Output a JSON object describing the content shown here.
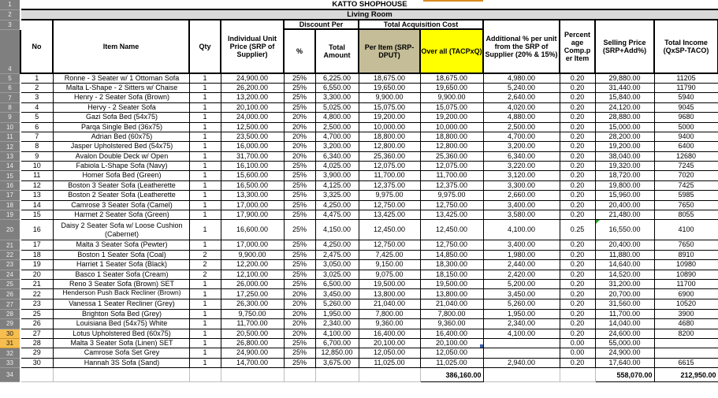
{
  "sheet": {
    "title": "KATTO SHOPHOUSE",
    "subtitle": "Living Room",
    "gutter": {
      "r1": "1",
      "r2": "2",
      "r3": "3",
      "r4": "4",
      "r34": "34"
    },
    "headers": {
      "no": "No",
      "item_name": "Item Name",
      "qty": "Qty",
      "unit_price": "Individual Unit Price (SRP of Supplier)",
      "discount_group": "Discount Per",
      "discount_pct": "%",
      "discount_total": "Total Amount",
      "tac_group": "Total Acquisition Cost",
      "tac_per_item": "Per Item  (SRP-DPUT)",
      "tac_overall": "Over all (TACPxQ)",
      "additional": "Additional % per unit from the SRP of Supplier (20% & 15%)",
      "percent_comp": "Percent age Comp.p er Item",
      "selling": "Selling Price (SRP+Add%)",
      "income": "Total Income (QxSP-TACO)"
    },
    "rows": [
      {
        "r": "5",
        "no": "1",
        "name": "Ronne - 3 Seater w/ 1 Ottoman Sofa",
        "qty": "1",
        "unit": "24,900.00",
        "dpct": "25%",
        "damt": "6,225.00",
        "per": "18,675.00",
        "oa": "18,675.00",
        "add": "4,980.00",
        "comp": "0.20",
        "sp": "29,880.00",
        "ti": "11205"
      },
      {
        "r": "6",
        "no": "2",
        "name": "Malta L-Shape - 2 Sitters w/ Chaise",
        "qty": "1",
        "unit": "26,200.00",
        "dpct": "25%",
        "damt": "6,550.00",
        "per": "19,650.00",
        "oa": "19,650.00",
        "add": "5,240.00",
        "comp": "0.20",
        "sp": "31,440.00",
        "ti": "11790"
      },
      {
        "r": "7",
        "no": "3",
        "name": "Henry - 2 Seater Sofa (Brown)",
        "qty": "1",
        "unit": "13,200.00",
        "dpct": "25%",
        "damt": "3,300.00",
        "per": "9,900.00",
        "oa": "9,900.00",
        "add": "2,640.00",
        "comp": "0.20",
        "sp": "15,840.00",
        "ti": "5940"
      },
      {
        "r": "8",
        "no": "4",
        "name": "Hervy - 2 Seater Sofa",
        "qty": "1",
        "unit": "20,100.00",
        "dpct": "25%",
        "damt": "5,025.00",
        "per": "15,075.00",
        "oa": "15,075.00",
        "add": "4,020.00",
        "comp": "0.20",
        "sp": "24,120.00",
        "ti": "9045"
      },
      {
        "r": "9",
        "no": "5",
        "name": "Gazi Sofa Bed (54x75)",
        "qty": "1",
        "unit": "24,000.00",
        "dpct": "20%",
        "damt": "4,800.00",
        "per": "19,200.00",
        "oa": "19,200.00",
        "add": "4,880.00",
        "comp": "0.20",
        "sp": "28,880.00",
        "ti": "9680"
      },
      {
        "r": "10",
        "no": "6",
        "name": "Parqa Single Bed (36x75)",
        "qty": "1",
        "unit": "12,500.00",
        "dpct": "20%",
        "damt": "2,500.00",
        "per": "10,000.00",
        "oa": "10,000.00",
        "add": "2,500.00",
        "comp": "0.20",
        "sp": "15,000.00",
        "ti": "5000"
      },
      {
        "r": "11",
        "no": "7",
        "name": "Adrian Bed (60x75)",
        "qty": "1",
        "unit": "23,500.00",
        "dpct": "20%",
        "damt": "4,700.00",
        "per": "18,800.00",
        "oa": "18,800.00",
        "add": "4,700.00",
        "comp": "0.20",
        "sp": "28,200.00",
        "ti": "9400"
      },
      {
        "r": "12",
        "no": "8",
        "name": "Jasper Upholstered Bed (54x75)",
        "qty": "1",
        "unit": "16,000.00",
        "dpct": "20%",
        "damt": "3,200.00",
        "per": "12,800.00",
        "oa": "12,800.00",
        "add": "3,200.00",
        "comp": "0.20",
        "sp": "19,200.00",
        "ti": "6400"
      },
      {
        "r": "13",
        "no": "9",
        "name": "Avalon Double Deck w/ Open",
        "qty": "1",
        "unit": "31,700.00",
        "dpct": "20%",
        "damt": "6,340.00",
        "per": "25,360.00",
        "oa": "25,360.00",
        "add": "6,340.00",
        "comp": "0.20",
        "sp": "38,040.00",
        "ti": "12680"
      },
      {
        "r": "14",
        "no": "10",
        "name": "Fabiola L-Shape Sofa (Navy)",
        "qty": "1",
        "unit": "16,100.00",
        "dpct": "25%",
        "damt": "4,025.00",
        "per": "12,075.00",
        "oa": "12,075.00",
        "add": "3,220.00",
        "comp": "0.20",
        "sp": "19,320.00",
        "ti": "7245"
      },
      {
        "r": "15",
        "no": "11",
        "name": "Homer Sofa Bed (Green)",
        "qty": "1",
        "unit": "15,600.00",
        "dpct": "25%",
        "damt": "3,900.00",
        "per": "11,700.00",
        "oa": "11,700.00",
        "add": "3,120.00",
        "comp": "0.20",
        "sp": "18,720.00",
        "ti": "7020"
      },
      {
        "r": "16",
        "no": "12",
        "name": "Boston 3 Seater Sofa (Leatherette",
        "qty": "1",
        "unit": "16,500.00",
        "dpct": "25%",
        "damt": "4,125.00",
        "per": "12,375.00",
        "oa": "12,375.00",
        "add": "3,300.00",
        "comp": "0.20",
        "sp": "19,800.00",
        "ti": "7425"
      },
      {
        "r": "17",
        "no": "13",
        "name": "Boston 2 Seater Sofa (Leatherette",
        "qty": "1",
        "unit": "13,300.00",
        "dpct": "25%",
        "damt": "3,325.00",
        "per": "9,975.00",
        "oa": "9,975.00",
        "add": "2,660.00",
        "comp": "0.20",
        "sp": "15,960.00",
        "ti": "5985"
      },
      {
        "r": "18",
        "no": "14",
        "name": "Camrose 3 Seater Sofa (Camel)",
        "qty": "1",
        "unit": "17,000.00",
        "dpct": "25%",
        "damt": "4,250.00",
        "per": "12,750.00",
        "oa": "12,750.00",
        "add": "3,400.00",
        "comp": "0.20",
        "sp": "20,400.00",
        "ti": "7650"
      },
      {
        "r": "19",
        "no": "15",
        "name": "Harmet 2 Seater Sofa (Green)",
        "qty": "1",
        "unit": "17,900.00",
        "dpct": "25%",
        "damt": "4,475.00",
        "per": "13,425.00",
        "oa": "13,425.00",
        "add": "3,580.00",
        "comp": "0.20",
        "sp": "21,480.00",
        "ti": "8055"
      },
      {
        "r": "20",
        "no": "16",
        "name": "Daisy 2 Seater Sofa w/ Loose Cushion (Cabernet)",
        "qty": "1",
        "unit": "16,600.00",
        "dpct": "25%",
        "damt": "4,150.00",
        "per": "12,450.00",
        "oa": "12,450.00",
        "add": "4,100.00",
        "comp": "0.25",
        "sp": "16,550.00",
        "ti": "4100",
        "tall": true,
        "tri": true
      },
      {
        "r": "21",
        "no": "17",
        "name": "Malta 3 Seater Sofa (Pewter)",
        "qty": "1",
        "unit": "17,000.00",
        "dpct": "25%",
        "damt": "4,250.00",
        "per": "12,750.00",
        "oa": "12,750.00",
        "add": "3,400.00",
        "comp": "0.20",
        "sp": "20,400.00",
        "ti": "7650"
      },
      {
        "r": "22",
        "no": "18",
        "name": "Boston 1 Seater Sofa (Coal)",
        "qty": "2",
        "unit": "9,900.00",
        "dpct": "25%",
        "damt": "2,475.00",
        "per": "7,425.00",
        "oa": "14,850.00",
        "add": "1,980.00",
        "comp": "0.20",
        "sp": "11,880.00",
        "ti": "8910"
      },
      {
        "r": "23",
        "no": "19",
        "name": "Harriet 1 Seater Sofa (Black)",
        "qty": "2",
        "unit": "12,200.00",
        "dpct": "25%",
        "damt": "3,050.00",
        "per": "9,150.00",
        "oa": "18,300.00",
        "add": "2,440.00",
        "comp": "0.20",
        "sp": "14,640.00",
        "ti": "10980"
      },
      {
        "r": "24",
        "no": "20",
        "name": "Basco 1 Seater Sofa (Cream)",
        "qty": "2",
        "unit": "12,100.00",
        "dpct": "25%",
        "damt": "3,025.00",
        "per": "9,075.00",
        "oa": "18,150.00",
        "add": "2,420.00",
        "comp": "0.20",
        "sp": "14,520.00",
        "ti": "10890"
      },
      {
        "r": "25",
        "no": "21",
        "name": "Reno 3 Seater Sofa (Brown) SET",
        "qty": "1",
        "unit": "26,000.00",
        "dpct": "25%",
        "damt": "6,500.00",
        "per": "19,500.00",
        "oa": "19,500.00",
        "add": "5,200.00",
        "comp": "0.20",
        "sp": "31,200.00",
        "ti": "11700"
      },
      {
        "r": "26",
        "no": "22",
        "name": "Henderson Push Back Recliner (Brown)",
        "qty": "1",
        "unit": "17,250.00",
        "dpct": "20%",
        "damt": "3,450.00",
        "per": "13,800.00",
        "oa": "13,800.00",
        "add": "3,450.00",
        "comp": "0.20",
        "sp": "20,700.00",
        "ti": "6900",
        "clip": true
      },
      {
        "r": "27",
        "no": "23",
        "name": "Vanessa 1 Seater Recliner (Grey)",
        "qty": "1",
        "unit": "26,300.00",
        "dpct": "20%",
        "damt": "5,260.00",
        "per": "21,040.00",
        "oa": "21,040.00",
        "add": "5,260.00",
        "comp": "0.20",
        "sp": "31,560.00",
        "ti": "10520"
      },
      {
        "r": "28",
        "no": "25",
        "name": "Brighton Sofa Bed (Grey)",
        "qty": "1",
        "unit": "9,750.00",
        "dpct": "20%",
        "damt": "1,950.00",
        "per": "7,800.00",
        "oa": "7,800.00",
        "add": "1,950.00",
        "comp": "0.20",
        "sp": "11,700.00",
        "ti": "3900"
      },
      {
        "r": "29",
        "no": "26",
        "name": "Louisiana Bed (54x75) White",
        "qty": "1",
        "unit": "11,700.00",
        "dpct": "20%",
        "damt": "2,340.00",
        "per": "9,360.00",
        "oa": "9,360.00",
        "add": "2,340.00",
        "comp": "0.20",
        "sp": "14,040.00",
        "ti": "4680"
      },
      {
        "r": "30",
        "no": "27",
        "name": "Lotus Upholstered Bed (60x75)",
        "qty": "1",
        "unit": "20,500.00",
        "dpct": "20%",
        "damt": "4,100.00",
        "per": "16,400.00",
        "oa": "16,400.00",
        "add": "4,100.00",
        "comp": "0.20",
        "sp": "24,600.00",
        "ti": "8200",
        "gsel": true,
        "sel": "top"
      },
      {
        "r": "31",
        "no": "28",
        "name": "Malta 3 Seater Sofa (Linen) SET",
        "qty": "1",
        "unit": "26,800.00",
        "dpct": "25%",
        "damt": "6,700.00",
        "per": "20,100.00",
        "oa": "20,100.00",
        "add": "",
        "comp": "0.00",
        "sp": "55,000.00",
        "ti": "",
        "gsel": true,
        "sel": "bottom"
      },
      {
        "r": "32",
        "no": "29",
        "name": "Camrose Sofa Set Grey",
        "qty": "1",
        "unit": "24,900.00",
        "dpct": "25%",
        "damt": "12,850.00",
        "per": "12,050.00",
        "oa": "12,050.00",
        "add": "",
        "comp": "0.00",
        "sp": "24,900.00",
        "ti": ""
      },
      {
        "r": "33",
        "no": "30",
        "name": "Hannah 3S Sofa (Sand)",
        "qty": "1",
        "unit": "14,700.00",
        "dpct": "25%",
        "damt": "3,675.00",
        "per": "11,025.00",
        "oa": "11,025.00",
        "add": "2,940.00",
        "comp": "0.20",
        "sp": "17,640.00",
        "ti": "6615"
      }
    ],
    "totals": {
      "overall": "386,160.00",
      "selling": "558,070.00",
      "income": "212,950.00"
    },
    "colors": {
      "unit-price-fill": "#FAC090",
      "discount-fill": "#D8E4BC",
      "per-item-fill": "#C4BD97",
      "overall-fill": "#FFFF00",
      "additional-fill": "#D8E4BC",
      "percent-fill": "#D8E4BC",
      "selling-fill": "#4F81BD",
      "income-fill": "#ED7D31",
      "subtitle-fill": "#D9D9D9",
      "gutter-fill": "#7F7F7F",
      "gutter-selected-fill": "#F6BE4E",
      "selection-border": "#3A5FAE",
      "selection-green": "#9CBE4F",
      "error-triangle": "#28A428",
      "top-sliver": "#D98C1F"
    }
  }
}
